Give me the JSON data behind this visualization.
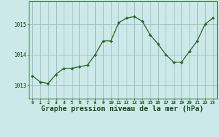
{
  "x": [
    0,
    1,
    2,
    3,
    4,
    5,
    6,
    7,
    8,
    9,
    10,
    11,
    12,
    13,
    14,
    15,
    16,
    17,
    18,
    19,
    20,
    21,
    22,
    23
  ],
  "y": [
    1013.3,
    1013.1,
    1013.05,
    1013.35,
    1013.55,
    1013.55,
    1013.6,
    1013.65,
    1014.0,
    1014.45,
    1014.45,
    1015.05,
    1015.2,
    1015.25,
    1015.1,
    1014.65,
    1014.35,
    1014.0,
    1013.75,
    1013.75,
    1014.1,
    1014.45,
    1015.0,
    1015.2
  ],
  "line_color": "#2d6a2d",
  "marker": "D",
  "marker_size": 2.2,
  "line_width": 1.0,
  "bg_color": "#cce8e8",
  "grid_color": "#99bbbb",
  "axis_label_color": "#1a4d1a",
  "title": "Graphe pression niveau de la mer (hPa)",
  "title_fontsize": 7.5,
  "ylim": [
    1012.55,
    1015.75
  ],
  "yticks": [
    1013,
    1014,
    1015
  ],
  "xlim": [
    -0.5,
    23.5
  ],
  "xtick_fontsize": 4.8,
  "ytick_fontsize": 5.5,
  "border_color": "#2d6a2d"
}
